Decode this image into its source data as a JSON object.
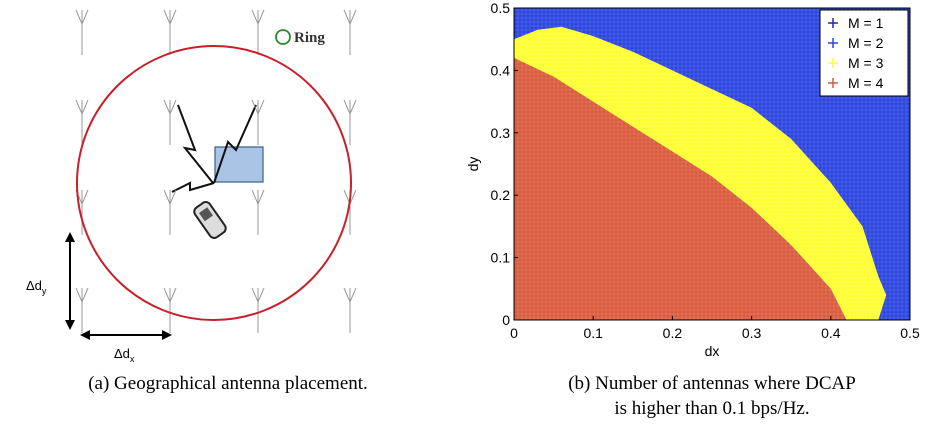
{
  "figure_a": {
    "ring_label": "Ring",
    "dy_label": "Δd",
    "dy_sub": "y",
    "dx_label": "Δd",
    "dx_sub": "x",
    "caption": "(a) Geographical antenna placement."
  },
  "chart_data": {
    "type": "region",
    "xlabel": "dx",
    "ylabel": "dy",
    "xlim": [
      0,
      0.5
    ],
    "ylim": [
      0,
      0.5
    ],
    "xticks": [
      0,
      0.1,
      0.2,
      0.3,
      0.4,
      0.5
    ],
    "yticks": [
      0,
      0.1,
      0.2,
      0.3,
      0.4,
      0.5
    ],
    "legend": "upper right",
    "series": [
      {
        "name": "M = 1",
        "color": "#2424b8"
      },
      {
        "name": "M = 2",
        "color": "#2a44e0"
      },
      {
        "name": "M = 3",
        "color": "#ffff30",
        "x": [
          0,
          0.03,
          0.06,
          0.1,
          0.15,
          0.2,
          0.25,
          0.3,
          0.35,
          0.4,
          0.44,
          0.46,
          0.47,
          0.46
        ],
        "values": [
          0.45,
          0.465,
          0.47,
          0.455,
          0.43,
          0.4,
          0.37,
          0.34,
          0.29,
          0.22,
          0.15,
          0.07,
          0.04,
          0
        ]
      },
      {
        "name": "M = 4",
        "color": "#d95a3c",
        "x": [
          0,
          0.05,
          0.1,
          0.15,
          0.2,
          0.25,
          0.3,
          0.35,
          0.4,
          0.42
        ],
        "values": [
          0.42,
          0.39,
          0.35,
          0.31,
          0.27,
          0.23,
          0.18,
          0.12,
          0.05,
          0
        ]
      }
    ],
    "caption": [
      "(b) Number of antennas where DCAP",
      "is higher than 0.1 bps/Hz."
    ]
  }
}
